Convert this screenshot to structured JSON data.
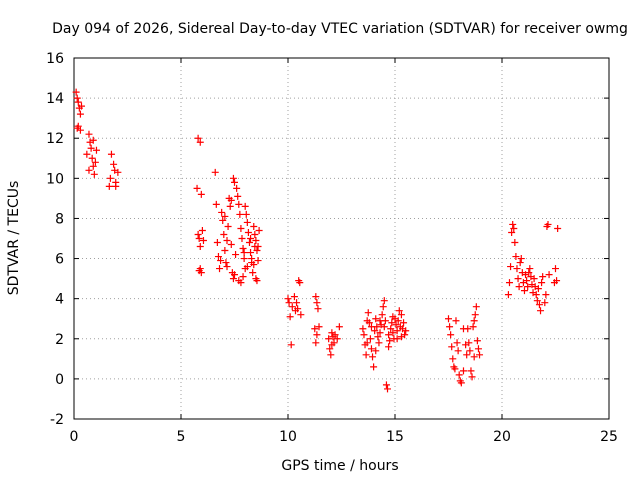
{
  "chart_data": {
    "type": "scatter",
    "title": "Day 094 of 2026, Sidereal Day-to-day VTEC variation (SDTVAR) for receiver owmg",
    "xlabel": "GPS time / hours",
    "ylabel": "SDTVAR / TECUs",
    "xlim": [
      0,
      25
    ],
    "ylim": [
      -2,
      16
    ],
    "xticks": [
      0,
      5,
      10,
      15,
      20,
      25
    ],
    "yticks": [
      -2,
      0,
      2,
      4,
      6,
      8,
      10,
      12,
      14,
      16
    ],
    "xtick_labels": [
      "0",
      "5",
      "10",
      "15",
      "20",
      "25"
    ],
    "ytick_labels": [
      "-2",
      "0",
      "2",
      "4",
      "6",
      "8",
      "10",
      "12",
      "14",
      "16"
    ],
    "grid": true,
    "marker": "+",
    "color": "#ff0000",
    "series": [
      {
        "name": "SDTVAR",
        "points": [
          [
            0.1,
            14.3
          ],
          [
            0.15,
            14.0
          ],
          [
            0.2,
            13.8
          ],
          [
            0.25,
            13.5
          ],
          [
            0.3,
            13.2
          ],
          [
            0.35,
            13.6
          ],
          [
            0.2,
            12.6
          ],
          [
            0.3,
            12.4
          ],
          [
            0.15,
            12.5
          ],
          [
            0.6,
            11.2
          ],
          [
            0.7,
            12.2
          ],
          [
            0.75,
            11.8
          ],
          [
            0.8,
            11.5
          ],
          [
            0.85,
            11.0
          ],
          [
            0.9,
            10.6
          ],
          [
            0.95,
            10.2
          ],
          [
            1.0,
            10.8
          ],
          [
            0.9,
            11.9
          ],
          [
            0.7,
            10.4
          ],
          [
            1.05,
            11.4
          ],
          [
            1.65,
            9.6
          ],
          [
            1.7,
            10.0
          ],
          [
            1.75,
            11.2
          ],
          [
            1.85,
            10.7
          ],
          [
            1.9,
            10.4
          ],
          [
            1.95,
            9.8
          ],
          [
            2.05,
            10.3
          ],
          [
            1.95,
            9.6
          ],
          [
            5.75,
            9.5
          ],
          [
            5.8,
            7.2
          ],
          [
            5.85,
            7.0
          ],
          [
            5.9,
            6.6
          ],
          [
            5.85,
            5.4
          ],
          [
            5.9,
            5.5
          ],
          [
            5.95,
            5.3
          ],
          [
            5.8,
            12.0
          ],
          [
            5.9,
            11.8
          ],
          [
            5.95,
            9.2
          ],
          [
            6.0,
            7.4
          ],
          [
            6.05,
            6.9
          ],
          [
            6.6,
            10.3
          ],
          [
            6.65,
            8.7
          ],
          [
            6.7,
            6.8
          ],
          [
            6.75,
            6.1
          ],
          [
            6.8,
            5.5
          ],
          [
            6.85,
            5.9
          ],
          [
            6.9,
            8.3
          ],
          [
            6.95,
            7.9
          ],
          [
            7.0,
            7.2
          ],
          [
            7.05,
            6.4
          ],
          [
            7.1,
            5.8
          ],
          [
            7.15,
            5.6
          ],
          [
            7.2,
            7.6
          ],
          [
            7.25,
            9.0
          ],
          [
            7.3,
            8.6
          ],
          [
            7.35,
            6.7
          ],
          [
            7.4,
            5.3
          ],
          [
            7.45,
            5.0
          ],
          [
            7.5,
            5.2
          ],
          [
            7.55,
            6.2
          ],
          [
            7.6,
            9.5
          ],
          [
            7.65,
            9.1
          ],
          [
            7.7,
            8.7
          ],
          [
            7.75,
            8.2
          ],
          [
            7.8,
            7.5
          ],
          [
            7.85,
            7.0
          ],
          [
            7.9,
            6.5
          ],
          [
            7.95,
            6.0
          ],
          [
            8.0,
            5.5
          ],
          [
            7.7,
            4.9
          ],
          [
            7.8,
            4.8
          ],
          [
            7.9,
            5.1
          ],
          [
            8.0,
            8.6
          ],
          [
            8.05,
            8.2
          ],
          [
            8.1,
            7.8
          ],
          [
            8.15,
            7.3
          ],
          [
            8.2,
            6.8
          ],
          [
            8.25,
            6.3
          ],
          [
            8.3,
            5.8
          ],
          [
            8.35,
            5.3
          ],
          [
            8.4,
            7.6
          ],
          [
            8.45,
            7.2
          ],
          [
            8.5,
            6.9
          ],
          [
            8.55,
            6.4
          ],
          [
            8.6,
            5.9
          ],
          [
            8.5,
            5.0
          ],
          [
            8.55,
            4.9
          ],
          [
            8.65,
            7.4
          ],
          [
            8.45,
            6.6
          ],
          [
            8.25,
            7.0
          ],
          [
            7.5,
            9.8
          ],
          [
            7.45,
            10.0
          ],
          [
            7.35,
            8.9
          ],
          [
            7.15,
            6.9
          ],
          [
            7.05,
            8.1
          ],
          [
            8.6,
            6.6
          ],
          [
            8.4,
            5.7
          ],
          [
            8.3,
            6.0
          ],
          [
            7.95,
            6.3
          ],
          [
            8.1,
            5.6
          ],
          [
            10.0,
            4.0
          ],
          [
            10.05,
            3.8
          ],
          [
            10.1,
            3.1
          ],
          [
            10.15,
            1.7
          ],
          [
            10.2,
            3.6
          ],
          [
            10.3,
            4.1
          ],
          [
            10.4,
            3.8
          ],
          [
            10.45,
            3.5
          ],
          [
            10.5,
            4.9
          ],
          [
            10.55,
            4.8
          ],
          [
            10.6,
            3.2
          ],
          [
            10.35,
            3.4
          ],
          [
            11.3,
            4.1
          ],
          [
            11.35,
            3.8
          ],
          [
            11.4,
            3.5
          ],
          [
            11.25,
            2.5
          ],
          [
            11.3,
            1.8
          ],
          [
            11.35,
            2.2
          ],
          [
            11.45,
            2.6
          ],
          [
            11.9,
            2.0
          ],
          [
            11.95,
            1.5
          ],
          [
            12.0,
            1.2
          ],
          [
            12.05,
            2.3
          ],
          [
            12.1,
            2.1
          ],
          [
            12.15,
            1.8
          ],
          [
            12.2,
            2.2
          ],
          [
            12.3,
            2.0
          ],
          [
            12.4,
            2.6
          ],
          [
            12.05,
            1.7
          ],
          [
            13.5,
            2.5
          ],
          [
            13.55,
            2.2
          ],
          [
            13.6,
            1.7
          ],
          [
            13.65,
            1.2
          ],
          [
            13.7,
            2.9
          ],
          [
            13.75,
            3.3
          ],
          [
            13.8,
            2.8
          ],
          [
            13.85,
            2.0
          ],
          [
            13.9,
            1.5
          ],
          [
            13.95,
            1.1
          ],
          [
            14.0,
            0.6
          ],
          [
            14.05,
            2.4
          ],
          [
            14.1,
            3.0
          ],
          [
            14.15,
            2.6
          ],
          [
            14.2,
            2.1
          ],
          [
            14.25,
            1.8
          ],
          [
            14.3,
            2.3
          ],
          [
            14.35,
            2.7
          ],
          [
            14.4,
            3.2
          ],
          [
            14.45,
            3.6
          ],
          [
            14.5,
            3.9
          ],
          [
            14.55,
            2.9
          ],
          [
            14.6,
            -0.3
          ],
          [
            14.65,
            -0.5
          ],
          [
            14.7,
            2.2
          ],
          [
            14.75,
            1.9
          ],
          [
            14.8,
            2.5
          ],
          [
            14.85,
            2.8
          ],
          [
            14.9,
            2.3
          ],
          [
            14.95,
            2.0
          ],
          [
            15.0,
            3.0
          ],
          [
            15.05,
            2.7
          ],
          [
            15.1,
            2.4
          ],
          [
            15.15,
            2.9
          ],
          [
            15.2,
            3.4
          ],
          [
            15.25,
            2.6
          ],
          [
            15.3,
            2.1
          ],
          [
            15.35,
            2.5
          ],
          [
            15.4,
            2.8
          ],
          [
            15.45,
            2.2
          ],
          [
            13.7,
            1.8
          ],
          [
            13.9,
            2.6
          ],
          [
            14.1,
            1.4
          ],
          [
            14.3,
            2.9
          ],
          [
            14.5,
            2.6
          ],
          [
            14.7,
            1.6
          ],
          [
            14.9,
            3.1
          ],
          [
            15.1,
            2.0
          ],
          [
            15.3,
            3.2
          ],
          [
            15.5,
            2.4
          ],
          [
            17.5,
            3.0
          ],
          [
            17.55,
            2.6
          ],
          [
            17.6,
            2.2
          ],
          [
            17.65,
            1.6
          ],
          [
            17.7,
            1.0
          ],
          [
            17.75,
            0.6
          ],
          [
            17.8,
            0.5
          ],
          [
            17.85,
            2.9
          ],
          [
            17.9,
            1.8
          ],
          [
            17.95,
            1.4
          ],
          [
            18.0,
            0.2
          ],
          [
            18.05,
            -0.1
          ],
          [
            18.1,
            -0.2
          ],
          [
            18.2,
            0.4
          ],
          [
            18.3,
            1.7
          ],
          [
            18.4,
            2.5
          ],
          [
            18.5,
            1.4
          ],
          [
            18.55,
            0.4
          ],
          [
            18.6,
            0.1
          ],
          [
            18.65,
            2.6
          ],
          [
            18.7,
            2.9
          ],
          [
            18.75,
            3.2
          ],
          [
            18.8,
            3.6
          ],
          [
            18.85,
            1.9
          ],
          [
            18.9,
            1.5
          ],
          [
            18.95,
            1.2
          ],
          [
            18.7,
            1.1
          ],
          [
            18.45,
            1.8
          ],
          [
            18.2,
            2.5
          ],
          [
            18.35,
            1.2
          ],
          [
            20.3,
            4.2
          ],
          [
            20.35,
            4.8
          ],
          [
            20.4,
            5.6
          ],
          [
            20.45,
            7.3
          ],
          [
            20.5,
            7.7
          ],
          [
            20.55,
            7.5
          ],
          [
            20.6,
            6.8
          ],
          [
            20.65,
            6.1
          ],
          [
            20.7,
            5.5
          ],
          [
            20.75,
            5.0
          ],
          [
            20.8,
            4.6
          ],
          [
            20.85,
            5.8
          ],
          [
            20.9,
            6.0
          ],
          [
            20.95,
            5.3
          ],
          [
            21.0,
            4.8
          ],
          [
            21.05,
            4.4
          ],
          [
            21.1,
            5.2
          ],
          [
            21.15,
            4.9
          ],
          [
            21.2,
            4.6
          ],
          [
            21.25,
            5.3
          ],
          [
            21.3,
            5.5
          ],
          [
            21.35,
            5.1
          ],
          [
            21.4,
            4.7
          ],
          [
            21.45,
            4.3
          ],
          [
            21.5,
            5.0
          ],
          [
            21.55,
            4.6
          ],
          [
            21.6,
            4.2
          ],
          [
            21.65,
            3.9
          ],
          [
            21.7,
            4.5
          ],
          [
            21.75,
            3.7
          ],
          [
            21.8,
            3.4
          ],
          [
            21.85,
            4.8
          ],
          [
            21.9,
            5.1
          ],
          [
            22.0,
            3.8
          ],
          [
            22.05,
            4.2
          ],
          [
            22.1,
            7.6
          ],
          [
            22.15,
            7.7
          ],
          [
            22.2,
            5.2
          ],
          [
            22.5,
            5.5
          ],
          [
            22.55,
            4.9
          ],
          [
            22.6,
            7.5
          ],
          [
            22.45,
            4.8
          ]
        ]
      }
    ]
  }
}
